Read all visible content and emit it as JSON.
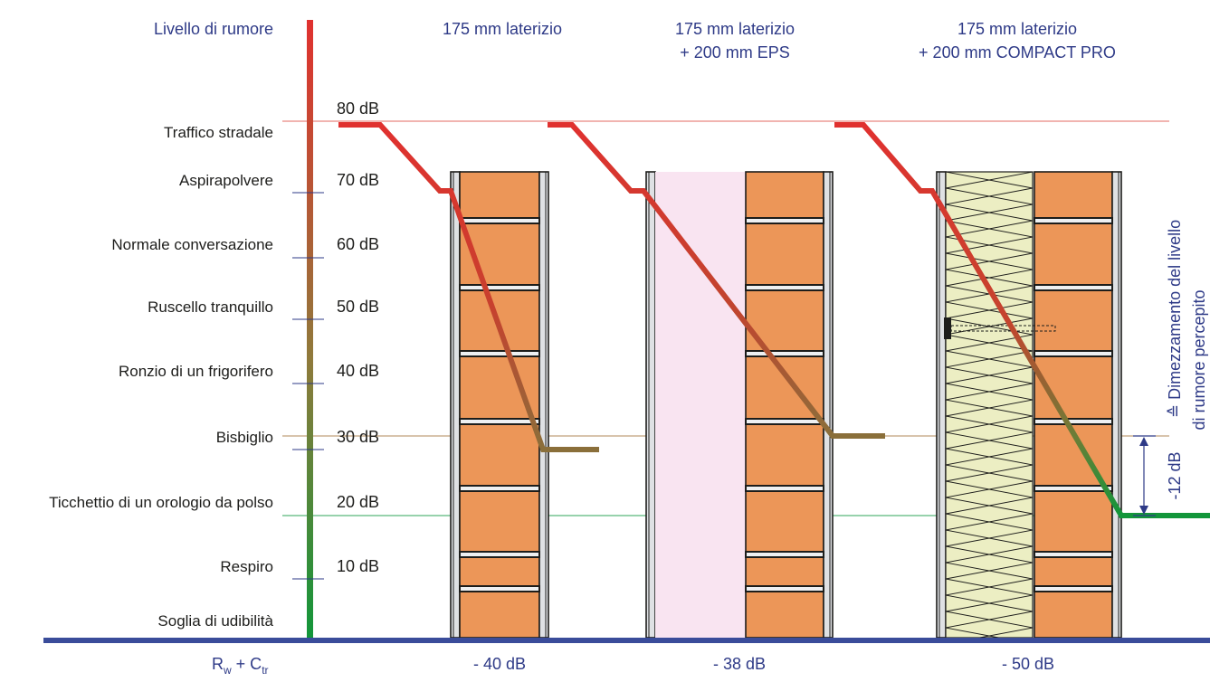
{
  "axis_title": "Livello di rumore",
  "levels": [
    {
      "label": "Traffico stradale",
      "db": "80 dB"
    },
    {
      "label": "Aspirapolvere",
      "db": "70 dB"
    },
    {
      "label": "Normale conversazione",
      "db": "60 dB"
    },
    {
      "label": "Ruscello tranquillo",
      "db": "50 dB"
    },
    {
      "label": "Ronzio di un frigorifero",
      "db": "40 dB"
    },
    {
      "label": "Bisbiglio",
      "db": "30 dB"
    },
    {
      "label": "Ticchettio di un orologio da polso",
      "db": "20 dB"
    },
    {
      "label": "Respiro",
      "db": "10 dB"
    },
    {
      "label": "Soglia di udibilità",
      "db": ""
    }
  ],
  "walls": [
    {
      "title_line1": "175 mm laterizio",
      "title_line2": "",
      "reduction": "- 40 dB",
      "result_db": 28
    },
    {
      "title_line1": "175 mm laterizio",
      "title_line2": "+ 200 mm EPS",
      "reduction": "- 38 dB",
      "result_db": 30
    },
    {
      "title_line1": "175 mm laterizio",
      "title_line2": "+ 200 mm COMPACT PRO",
      "reduction": "- 50 dB",
      "result_db": 18
    }
  ],
  "footer_label_main": "R",
  "footer_label_sub1": "w",
  "footer_label_plus": " + C",
  "footer_label_sub2": "tr",
  "bracket": {
    "value": "-12 dB",
    "note_line1": "≙ Dimezzamento del livello",
    "note_line2": "di rumore percepito"
  },
  "colors": {
    "accent_text": "#2e3a87",
    "baseline": "#3a4c9a",
    "brick": "#ec9658",
    "eps": "#f9e4f1",
    "insulation": "#eceec3",
    "line_red": "#e0312f",
    "line_mid": "#92723a",
    "line_green": "#12963a"
  }
}
